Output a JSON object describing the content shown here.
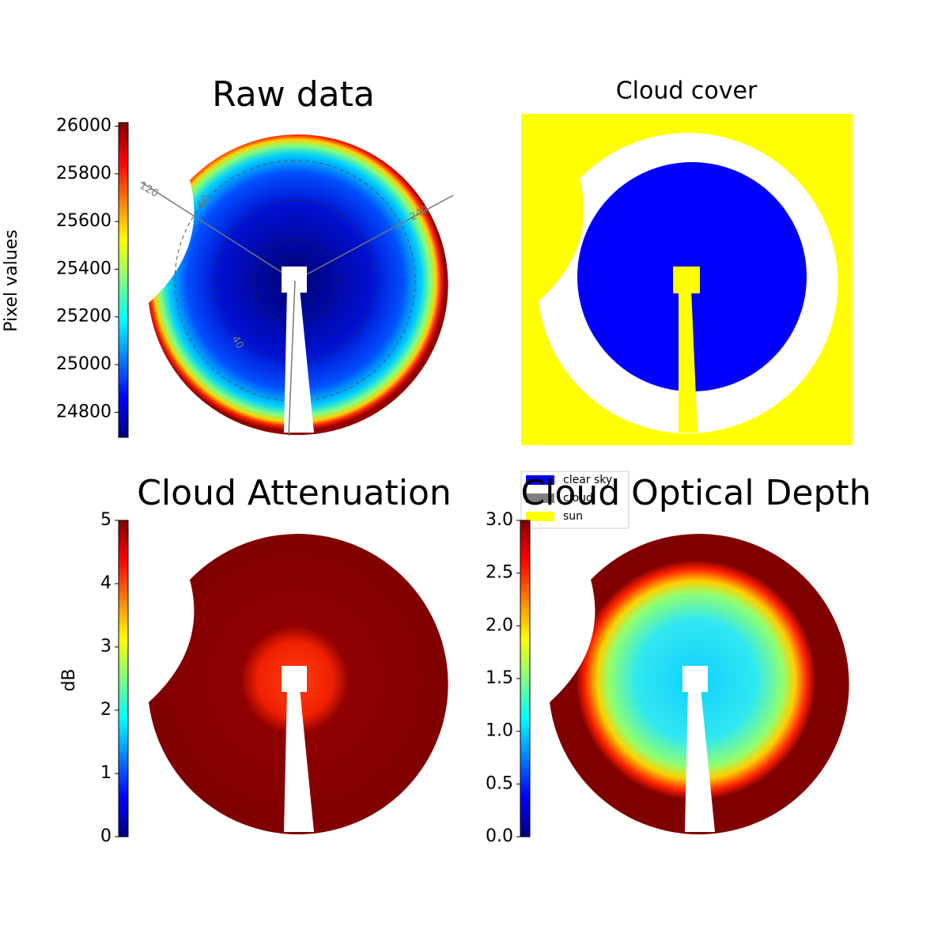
{
  "chart_data": [
    {
      "type": "heatmap",
      "title": "Raw data",
      "colorbar_label": "Pixel values",
      "clim": [
        24695,
        26015
      ],
      "cticks": [
        24800,
        25000,
        25200,
        25400,
        25600,
        25800,
        26000
      ],
      "annotations": [
        "120",
        "60",
        "240",
        "40"
      ]
    },
    {
      "type": "categorical",
      "title": "Cloud cover",
      "legend": [
        {
          "name": "clear sky",
          "color": "#0000ff"
        },
        {
          "name": "cloud",
          "color": "#808080"
        },
        {
          "name": "sun",
          "color": "#ffff00"
        }
      ]
    },
    {
      "type": "heatmap",
      "title": "Cloud Attenuation",
      "colorbar_label": "dB",
      "clim": [
        0,
        5
      ],
      "cticks": [
        0,
        1,
        2,
        3,
        4,
        5
      ]
    },
    {
      "type": "heatmap",
      "title": "Cloud Optical Depth",
      "clim": [
        0,
        3
      ],
      "cticks": [
        {
          "value": 0,
          "label": "0.0"
        },
        0.5,
        {
          "value": 1,
          "label": "1.0"
        },
        1.5,
        {
          "value": 2,
          "label": "2.0"
        },
        2.5,
        {
          "value": 3,
          "label": "3.0"
        }
      ]
    }
  ]
}
